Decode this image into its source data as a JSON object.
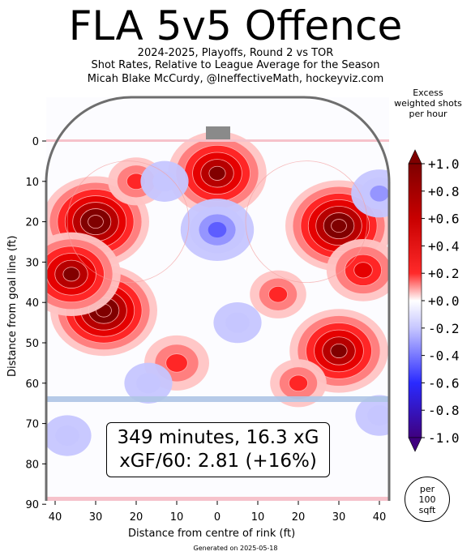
{
  "title": "FLA 5v5 Offence",
  "subtitle_lines": [
    "2024-2025, Playoffs, Round 2 vs TOR",
    "Shot Rates, Relative to League Average for the Season",
    "Micah Blake McCurdy, @IneffectiveMath, hockeyviz.com"
  ],
  "colorbar_title_lines": [
    "Excess",
    "weighted shots",
    "per hour"
  ],
  "per_badge_lines": [
    "per",
    "100",
    "sqft"
  ],
  "annotation_lines": [
    "349 minutes, 16.3 xG",
    "xGF/60: 2.81 (+16%)"
  ],
  "footer": "Generated on 2025-05-18",
  "colors": {
    "positive_max": "#7f0000",
    "positive": "#ff0000",
    "neutral": "#ffffff",
    "negative": "#0000ff",
    "negative_max": "#3f007f",
    "rink_outline": "#6e6e6e",
    "blue_line": "#aec4e6",
    "goal_line": "#f6c2cb"
  },
  "chart_data": {
    "type": "heatmap",
    "xlabel": "Distance from centre of rink (ft)",
    "ylabel": "Distance from goal line (ft)",
    "x_tick_labels": [
      "40",
      "30",
      "20",
      "10",
      "0",
      "10",
      "20",
      "30",
      "40"
    ],
    "x_tick_values": [
      -40,
      -30,
      -20,
      -10,
      0,
      10,
      20,
      30,
      40
    ],
    "y_ticks": [
      0,
      10,
      20,
      30,
      40,
      50,
      60,
      70,
      80,
      90
    ],
    "xlim": [
      -42.5,
      42.5
    ],
    "ylim": [
      90,
      -11
    ],
    "colorbar": {
      "tick_labels": [
        "+1.0",
        "+0.8",
        "+0.6",
        "+0.4",
        "+0.2",
        "+0.0",
        "-0.2",
        "-0.4",
        "-0.6",
        "-0.8",
        "-1.0"
      ],
      "range": [
        -1.0,
        1.0
      ]
    },
    "hotspots": [
      {
        "x": -30,
        "y": 20,
        "value": 1.0
      },
      {
        "x": -28,
        "y": 42,
        "value": 1.0
      },
      {
        "x": -36,
        "y": 33,
        "value": 0.9
      },
      {
        "x": 0,
        "y": 8,
        "value": 0.9
      },
      {
        "x": 30,
        "y": 21,
        "value": 1.0
      },
      {
        "x": 30,
        "y": 52,
        "value": 0.9
      },
      {
        "x": 36,
        "y": 32,
        "value": 0.6
      },
      {
        "x": -20,
        "y": 10,
        "value": 0.4
      },
      {
        "x": 15,
        "y": 38,
        "value": 0.4
      },
      {
        "x": -10,
        "y": 55,
        "value": 0.5
      },
      {
        "x": 20,
        "y": 60,
        "value": 0.4
      },
      {
        "x": 0,
        "y": 22,
        "value": -0.6
      },
      {
        "x": 40,
        "y": 13,
        "value": -0.4
      },
      {
        "x": 40,
        "y": 68,
        "value": -0.3
      },
      {
        "x": -37,
        "y": 73,
        "value": -0.3
      },
      {
        "x": 5,
        "y": 45,
        "value": -0.3
      },
      {
        "x": -13,
        "y": 10,
        "value": -0.3
      },
      {
        "x": -17,
        "y": 60,
        "value": -0.3
      }
    ]
  }
}
